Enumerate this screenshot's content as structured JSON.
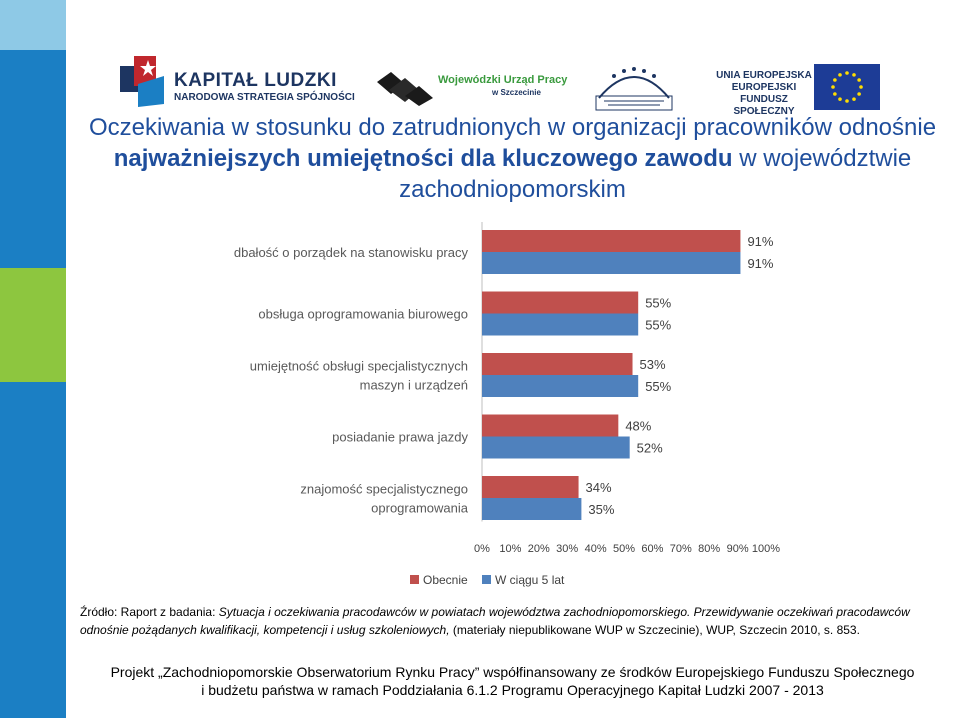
{
  "header": {
    "kapital_ludzki": {
      "name": "KAPITAŁ LUDZKI",
      "subtitle": "NARODOWA STRATEGIA SPÓJNOŚCI"
    },
    "wup": {
      "name": "Wojewódzki Urząd Pracy",
      "city": "w Szczecinie"
    },
    "ue": {
      "line1": "UNIA EUROPEJSKA",
      "line2": "EUROPEJSKI",
      "line3": "FUNDUSZ SPOŁECZNY"
    }
  },
  "title": {
    "part1": "Oczekiwania w stosunku do zatrudnionych w organizacji pracowników odnośnie ",
    "bold": "najważniejszych umiejętności dla kluczowego zawodu",
    "part2": " w województwie zachodniopomorskim"
  },
  "chart_data": {
    "type": "bar",
    "orientation": "horizontal",
    "categories": [
      [
        "dbałość o porządek na stanowisku pracy"
      ],
      [
        "obsługa oprogramowania biurowego"
      ],
      [
        "umiejętność obsługi specjalistycznych",
        "maszyn i urządzeń"
      ],
      [
        "posiadanie prawa jazdy"
      ],
      [
        "znajomość specjalistycznego",
        "oprogramowania"
      ]
    ],
    "series": [
      {
        "name": "Obecnie",
        "color": "#c0504d",
        "values": [
          91,
          55,
          53,
          48,
          34
        ],
        "labels": [
          "91%",
          "55%",
          "53%",
          "48%",
          "34%"
        ]
      },
      {
        "name": "W ciągu 5 lat",
        "color": "#4f81bd",
        "values": [
          91,
          55,
          55,
          52,
          35
        ],
        "labels": [
          "91%",
          "55%",
          "55%",
          "52%",
          "35%"
        ]
      }
    ],
    "xlim": [
      0,
      100
    ],
    "xticks": [
      "0%",
      "10%",
      "20%",
      "30%",
      "40%",
      "50%",
      "60%",
      "70%",
      "80%",
      "90%",
      "100%"
    ],
    "legend_position": "bottom",
    "grid": false
  },
  "source": {
    "prefix": "Źródło: Raport z badania: ",
    "italic1": "Sytuacja i oczekiwania pracodawców w powiatach województwa zachodniopomorskiego. Przewidywanie oczekiwań pracodawców odnośnie pożądanych kwalifikacji, kompetencji i usług szkoleniowych,",
    "suffix": " (materiały niepublikowane WUP w Szczecinie), WUP, Szczecin 2010, s. 853."
  },
  "footer": {
    "line1": "Projekt „Zachodniopomorskie Obserwatorium Rynku Pracy” współfinansowany ze środków Europejskiego Funduszu Społecznego",
    "line2": "i budżetu państwa w ramach Poddziałania 6.1.2 Programu Operacyjnego Kapitał Ludzki 2007 - 2013"
  }
}
